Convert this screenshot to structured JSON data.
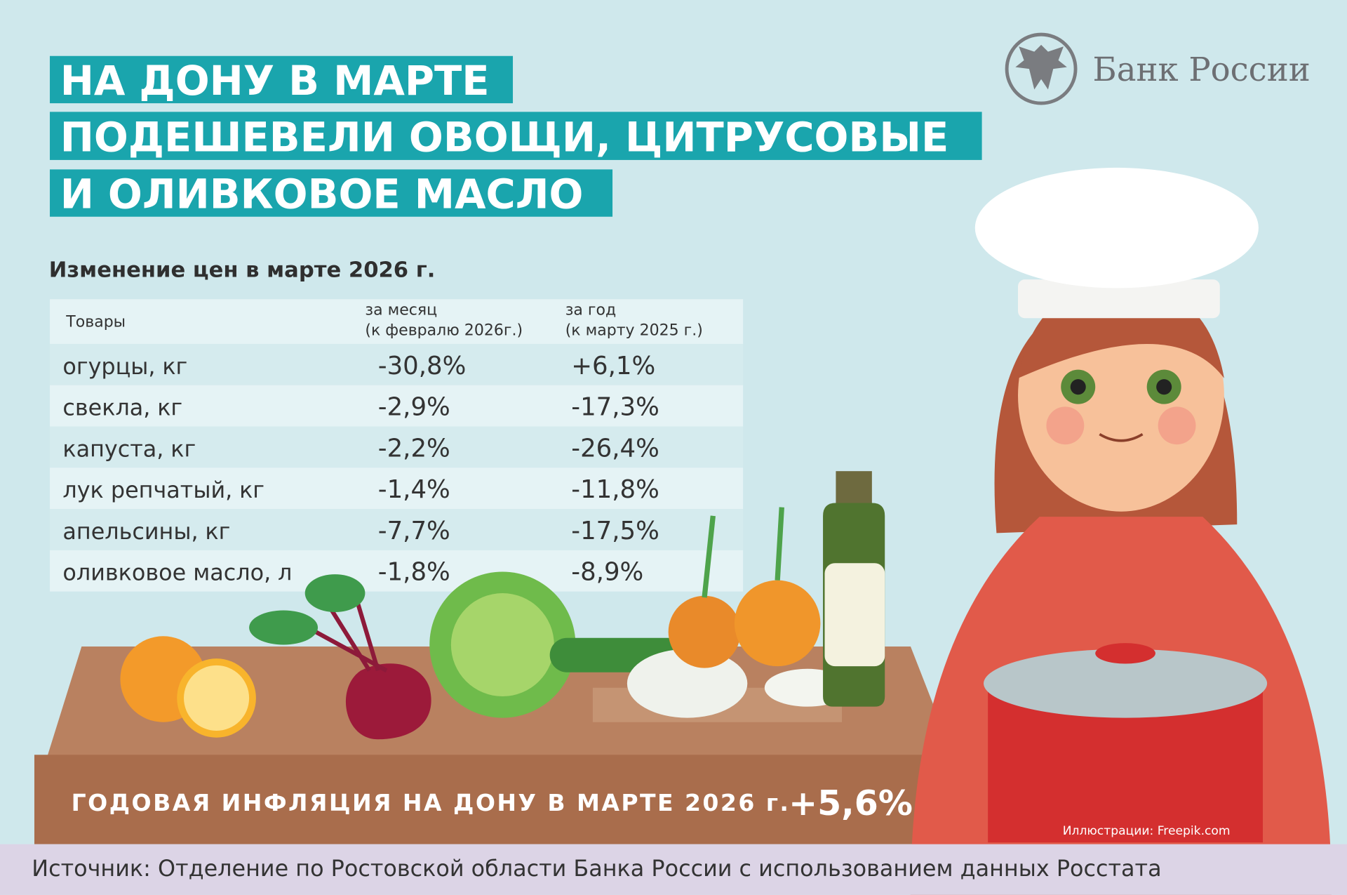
{
  "header": {
    "title_lines": [
      "НА ДОНУ В МАРТЕ",
      "ПОДЕШЕВЕЛИ ОВОЩИ, ЦИТРУСОВЫЕ",
      "И ОЛИВКОВОЕ МАСЛО"
    ]
  },
  "logo": {
    "text": "Банк России"
  },
  "table": {
    "caption": "Изменение цен в марте 2026 г.",
    "headers": {
      "item": "Товары",
      "month": [
        "за месяц",
        "(к февралю 2026г.)"
      ],
      "year": [
        "за год",
        "(к марту  2025 г.)"
      ]
    },
    "rows": [
      {
        "name": "огурцы,",
        "unit": "кг",
        "month": "-30,8%",
        "year": "+6,1%"
      },
      {
        "name": "свекла,",
        "unit": "кг",
        "month": "-2,9%",
        "year": "-17,3%"
      },
      {
        "name": "капуста,",
        "unit": "кг",
        "month": "-2,2%",
        "year": "-26,4%"
      },
      {
        "name": "лук репчатый,",
        "unit": "кг",
        "month": "-1,4%",
        "year": "-11,8%"
      },
      {
        "name": "апельсины,",
        "unit": "кг",
        "month": "-7,7%",
        "year": "-17,5%"
      },
      {
        "name": "оливковое масло,",
        "unit": "л",
        "month": "-1,8%",
        "year": "-8,9%"
      }
    ]
  },
  "footer": {
    "inflation_label": "ГОДОВАЯ ИНФЛЯЦИЯ НА ДОНУ В МАРТЕ 2026 г.",
    "inflation_value": "+5,6%",
    "credit": "Иллюстрации: Freepik.com",
    "source": "Источник: Отделение по Ростовской области Банка России с использованием данных Росстата"
  }
}
